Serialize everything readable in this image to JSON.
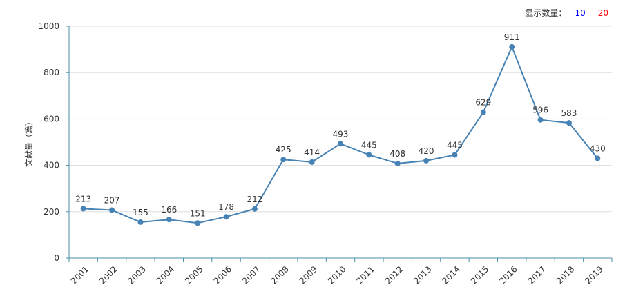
{
  "controls": {
    "count_label": "显示数量：",
    "options": [
      "10",
      "20"
    ]
  },
  "colors": {
    "line": "#4682b4",
    "option_10": "#0000ff",
    "option_20": "#ff0000",
    "axis": "#4a8fa8",
    "grid": "#dddddd"
  },
  "chart_data": {
    "type": "line",
    "ylabel": "文献量（篇）",
    "xlabel": "",
    "ylim": [
      0,
      1000
    ],
    "yticks": [
      0,
      200,
      400,
      600,
      800,
      1000
    ],
    "grid": "horizontal",
    "categories": [
      "2001",
      "2002",
      "2003",
      "2004",
      "2005",
      "2006",
      "2007",
      "2008",
      "2009",
      "2010",
      "2011",
      "2012",
      "2013",
      "2014",
      "2015",
      "2016",
      "2017",
      "2018",
      "2019"
    ],
    "series": [
      {
        "values": [
          213,
          207,
          155,
          166,
          151,
          178,
          212,
          425,
          414,
          493,
          445,
          408,
          420,
          445,
          629,
          911,
          596,
          583,
          430
        ]
      }
    ]
  }
}
